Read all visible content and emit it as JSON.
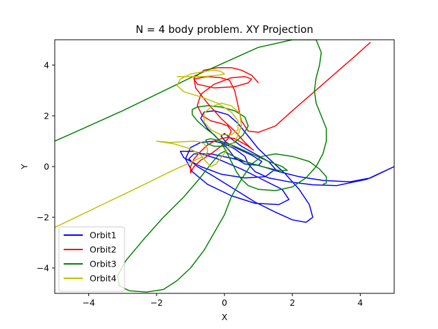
{
  "chart_data": {
    "type": "line",
    "title": "N = 4 body problem. XY Projection",
    "xlabel": "X",
    "ylabel": "Y",
    "xlim": [
      -5,
      5
    ],
    "ylim": [
      -5,
      5
    ],
    "xticks": [
      -4,
      -2,
      0,
      2,
      4
    ],
    "yticks": [
      -4,
      -2,
      0,
      2,
      4
    ],
    "grid": false,
    "legend_position": "lower-left",
    "series": [
      {
        "name": "Orbit1",
        "color": "#0000ff",
        "x": [
          5.0,
          4.2,
          3.3,
          2.6,
          1.9,
          1.3,
          0.9,
          0.7,
          0.6,
          0.3,
          0.0,
          -0.3,
          -0.7,
          -1.0,
          -1.15,
          -0.95,
          -0.5,
          0.2,
          0.9,
          1.6,
          1.9,
          1.7,
          1.1,
          0.5,
          -0.2,
          -0.9,
          -1.3,
          -1.2,
          -0.7,
          -0.1,
          0.6,
          1.2,
          1.5,
          1.3,
          0.9,
          0.5,
          0.2,
          0.0,
          -0.1,
          0.05,
          0.4,
          0.8,
          1.1,
          1.0,
          0.6,
          0.3,
          0.1,
          -0.2,
          -0.5,
          -0.7,
          -0.6,
          -0.3,
          0.1,
          0.4,
          0.7,
          1.0,
          1.4,
          1.8,
          2.2,
          2.5,
          2.6,
          2.4,
          2.0,
          1.5,
          0.9,
          0.3,
          -0.3,
          -0.8,
          -1.05,
          -0.9,
          -0.4,
          0.3,
          1.0,
          1.6,
          2.2,
          2.9,
          3.7,
          4.3,
          5.0
        ],
        "y": [
          0.0,
          -0.5,
          -0.75,
          -0.72,
          -0.6,
          -0.45,
          -0.2,
          0.1,
          0.4,
          0.7,
          0.9,
          1.0,
          0.95,
          0.75,
          0.3,
          -0.2,
          -0.7,
          -1.15,
          -1.45,
          -1.5,
          -1.3,
          -0.9,
          -0.5,
          -0.1,
          0.3,
          0.6,
          0.6,
          0.35,
          0.0,
          -0.3,
          -0.45,
          -0.4,
          -0.1,
          0.2,
          0.5,
          0.8,
          1.1,
          1.3,
          1.2,
          0.95,
          0.7,
          0.45,
          0.2,
          0.05,
          0.1,
          0.35,
          0.7,
          1.1,
          1.5,
          1.9,
          2.15,
          2.2,
          2.05,
          1.7,
          1.2,
          0.7,
          0.2,
          -0.3,
          -0.9,
          -1.5,
          -2.0,
          -2.2,
          -2.1,
          -1.8,
          -1.4,
          -0.9,
          -0.4,
          0.0,
          0.3,
          0.5,
          0.5,
          0.3,
          0.05,
          -0.2,
          -0.4,
          -0.55,
          -0.6,
          -0.45,
          0.0
        ]
      },
      {
        "name": "Orbit2",
        "color": "#ff0000",
        "x": [
          4.3,
          3.8,
          3.2,
          2.6,
          2.0,
          1.5,
          1.0,
          0.7,
          0.5,
          0.4,
          0.3,
          0.15,
          -0.1,
          -0.5,
          -0.9,
          -0.8,
          -0.3,
          0.3,
          0.7,
          0.8,
          0.6,
          0.2,
          -0.3,
          -0.7,
          -0.8,
          -0.65,
          -0.4,
          -0.1,
          0.1,
          0.2,
          0.1,
          -0.1,
          -0.4,
          -0.7,
          -0.9,
          -1.0,
          -1.0,
          -0.9,
          -0.7,
          -0.5,
          -0.3,
          -0.1,
          0.1,
          0.3,
          0.5,
          0.7,
          0.85,
          0.8,
          0.6,
          0.3,
          -0.1,
          -0.5,
          -0.85,
          -0.9,
          -0.6,
          -0.2,
          0.2,
          0.5,
          0.8,
          1.0
        ],
        "y": [
          4.9,
          4.3,
          3.6,
          2.9,
          2.2,
          1.6,
          1.35,
          1.4,
          1.8,
          2.4,
          3.0,
          3.4,
          3.5,
          3.55,
          3.45,
          3.25,
          3.1,
          3.15,
          3.3,
          3.45,
          3.55,
          3.5,
          3.25,
          2.85,
          2.4,
          2.0,
          1.8,
          1.7,
          1.6,
          1.4,
          1.1,
          0.8,
          0.5,
          0.25,
          0.0,
          -0.25,
          0.0,
          0.3,
          0.6,
          0.85,
          1.0,
          1.1,
          1.15,
          1.1,
          0.95,
          0.8,
          0.65,
          0.7,
          0.95,
          1.4,
          1.9,
          2.5,
          3.1,
          3.5,
          3.8,
          3.9,
          3.9,
          3.8,
          3.6,
          3.3
        ]
      },
      {
        "name": "Orbit3",
        "color": "#008000",
        "x": [
          -5.0,
          -4.0,
          -3.0,
          -2.0,
          -1.0,
          0.0,
          0.5,
          1.0,
          2.0,
          2.7,
          2.85,
          2.8,
          2.7,
          2.65,
          2.7,
          2.85,
          3.0,
          3.0,
          2.9,
          2.7,
          2.4,
          2.0,
          1.5,
          1.0,
          0.7,
          0.5,
          0.35,
          0.2,
          0.05,
          -0.1,
          -0.3,
          -0.55,
          -0.8,
          -0.95,
          -0.95,
          -0.8,
          -0.5,
          -0.1,
          0.3,
          0.6,
          0.7,
          0.55,
          0.3,
          0.0,
          -0.3,
          -0.5,
          -0.55,
          -0.4,
          -0.1,
          0.3,
          0.8,
          1.3,
          1.7,
          1.85,
          1.6,
          1.1,
          0.6,
          0.2,
          0.0,
          -0.15,
          -0.4,
          -0.75,
          -1.2,
          -1.8,
          -2.4,
          -2.9,
          -3.15,
          -3.1,
          -2.8,
          -2.3,
          -1.8,
          -1.4,
          -1.0,
          -0.6,
          -0.3,
          0.0,
          0.2,
          0.5,
          0.8,
          1.1,
          1.5,
          2.0,
          2.5,
          2.8,
          3.0,
          3.0,
          2.9
        ],
        "y": [
          1.0,
          1.6,
          2.2,
          2.85,
          3.5,
          4.1,
          4.4,
          4.7,
          5.0,
          5.0,
          4.5,
          4.0,
          3.5,
          3.0,
          2.5,
          2.0,
          1.5,
          1.0,
          0.5,
          0.0,
          -0.45,
          -0.8,
          -0.95,
          -0.9,
          -0.75,
          -0.5,
          -0.2,
          0.2,
          0.6,
          0.95,
          1.25,
          1.5,
          1.8,
          2.05,
          2.25,
          2.35,
          2.4,
          2.35,
          2.2,
          1.95,
          1.6,
          1.25,
          0.95,
          0.8,
          0.8,
          0.9,
          1.05,
          1.1,
          1.0,
          0.8,
          0.5,
          0.2,
          0.0,
          -0.15,
          -0.15,
          0.0,
          0.2,
          0.45,
          0.6,
          0.5,
          0.1,
          -0.5,
          -1.2,
          -2.0,
          -2.9,
          -3.7,
          -4.3,
          -4.7,
          -4.9,
          -4.95,
          -4.85,
          -4.5,
          -4.0,
          -3.3,
          -2.6,
          -1.9,
          -1.2,
          -0.5,
          0.1,
          0.4,
          0.5,
          0.4,
          0.2,
          -0.1,
          -0.4,
          -0.65,
          -0.7
        ]
      },
      {
        "name": "Orbit4",
        "color": "#bfbf00",
        "x": [
          -5.0,
          -4.3,
          -3.6,
          -2.9,
          -2.2,
          -1.6,
          -1.1,
          -0.7,
          -0.5,
          -0.5,
          -0.6,
          -0.75,
          -0.9,
          -1.2,
          -1.6,
          -2.0,
          -1.5,
          -1.0,
          -0.7,
          -0.55,
          -0.4,
          -0.25,
          -0.1,
          0.1,
          0.35,
          0.5,
          0.45,
          0.2,
          -0.1,
          -0.4,
          -0.6,
          -0.6,
          -0.4,
          -0.1,
          0.2,
          0.4,
          0.4,
          0.2,
          -0.2,
          -0.7,
          -1.2,
          -1.4,
          -1.3,
          -1.0,
          -0.6,
          -0.3,
          -0.1,
          0.0,
          -0.2,
          -0.6,
          -1.0,
          -1.4
        ],
        "y": [
          -2.4,
          -1.95,
          -1.5,
          -1.05,
          -0.6,
          -0.2,
          0.1,
          0.35,
          0.55,
          0.7,
          0.9,
          0.98,
          1.0,
          0.98,
          0.95,
          1.0,
          0.9,
          0.7,
          0.45,
          0.2,
          0.0,
          0.1,
          0.35,
          0.7,
          1.1,
          1.6,
          2.1,
          2.4,
          2.5,
          2.35,
          2.1,
          1.75,
          1.45,
          1.25,
          1.25,
          1.45,
          1.8,
          2.15,
          2.5,
          2.75,
          2.95,
          3.2,
          3.45,
          3.65,
          3.75,
          3.8,
          3.75,
          3.65,
          3.6,
          3.55,
          3.55,
          3.55
        ]
      }
    ]
  }
}
